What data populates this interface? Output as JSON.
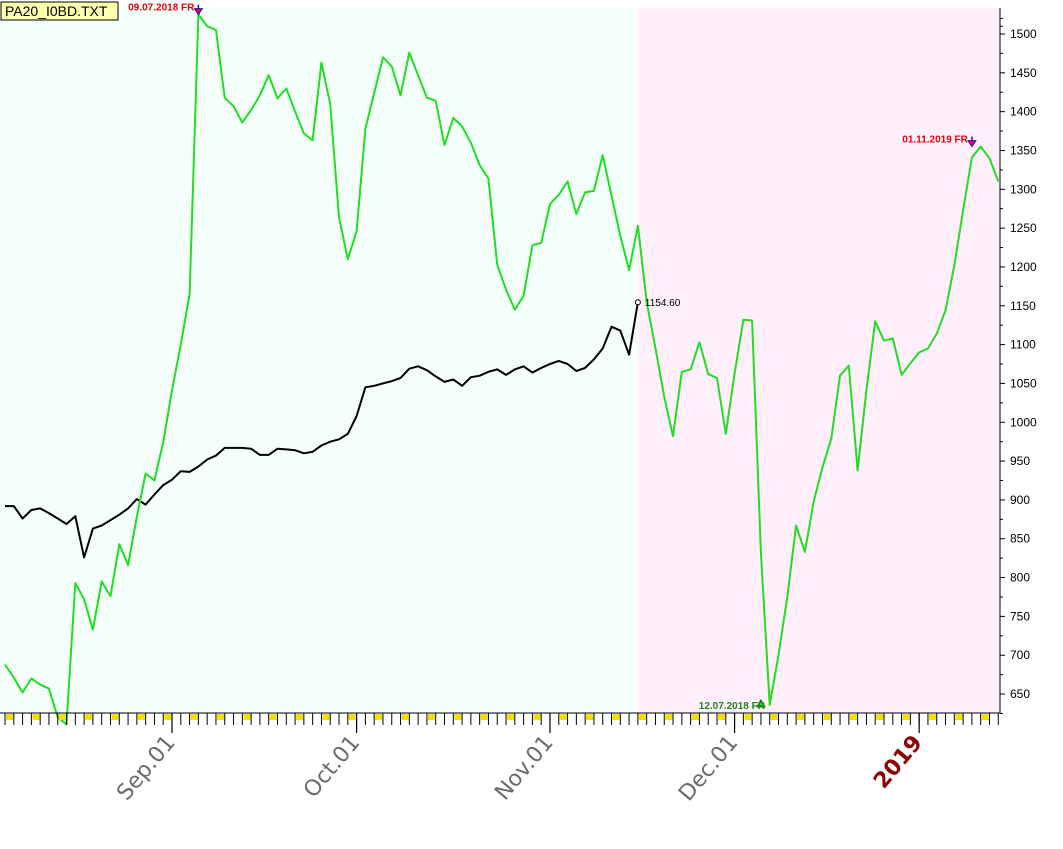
{
  "chart_data": {
    "type": "line",
    "title": "PA20_I0BD.TXT",
    "ylim": [
      625,
      1530
    ],
    "y_ticks": [
      650,
      700,
      750,
      800,
      850,
      900,
      950,
      1000,
      1050,
      1100,
      1150,
      1200,
      1250,
      1300,
      1350,
      1400,
      1450,
      1500
    ],
    "x_labels": [
      {
        "label": "Sep.01",
        "bar": 19,
        "year": false
      },
      {
        "label": "Oct.01",
        "bar": 40,
        "year": false
      },
      {
        "label": "Nov.01",
        "bar": 62,
        "year": false
      },
      {
        "label": "Dec.01",
        "bar": 83,
        "year": false
      },
      {
        "label": "2019",
        "bar": 104,
        "year": true
      }
    ],
    "regions": [
      {
        "from_bar": 0,
        "to_bar": 72,
        "color": "#f4fffc"
      },
      {
        "from_bar": 72,
        "to_bar": 113,
        "color": "#fff0fc"
      }
    ],
    "series": [
      {
        "color": "#000000",
        "x": [
          0,
          1,
          2,
          3,
          4,
          5,
          6,
          7,
          8,
          9,
          10,
          11,
          12,
          13,
          14,
          15,
          16,
          17,
          18,
          19,
          20,
          21,
          22,
          23,
          24,
          25,
          26,
          27,
          28,
          29,
          30,
          31,
          32,
          33,
          34,
          35,
          36,
          37,
          38,
          39,
          40,
          41,
          42,
          43,
          44,
          45,
          46,
          47,
          48,
          49,
          50,
          51,
          52,
          53,
          54,
          55,
          56,
          57,
          58,
          59,
          60,
          61,
          62,
          63,
          64,
          65,
          66,
          67,
          68,
          69,
          70,
          71,
          72
        ],
        "values": [
          892,
          892,
          876,
          887,
          889,
          883,
          876,
          869,
          879,
          826,
          863,
          867,
          874,
          881,
          889,
          901,
          894,
          907,
          919,
          926,
          937,
          936,
          943,
          952,
          957,
          967,
          967,
          967,
          966,
          958,
          958,
          966,
          965,
          964,
          960,
          962,
          970,
          975,
          978,
          985,
          1008,
          1045,
          1047,
          1050,
          1053,
          1057,
          1069,
          1072,
          1067,
          1059,
          1052,
          1055,
          1047,
          1058,
          1060,
          1065,
          1068,
          1061,
          1068,
          1072,
          1064,
          1070,
          1075,
          1079,
          1075,
          1066,
          1070,
          1081,
          1095,
          1123,
          1118,
          1087,
          1154.6
        ]
      },
      {
        "color": "#22dd22",
        "x": [
          0,
          1,
          2,
          3,
          4,
          5,
          6,
          7,
          8,
          9,
          10,
          11,
          12,
          13,
          14,
          15,
          16,
          17,
          18,
          19,
          20,
          21,
          22,
          23,
          24,
          25,
          26,
          27,
          28,
          29,
          30,
          31,
          32,
          33,
          34,
          35,
          36,
          37,
          38,
          39,
          40,
          41,
          42,
          43,
          44,
          45,
          46,
          47,
          48,
          49,
          50,
          51,
          52,
          53,
          54,
          55,
          56,
          57,
          58,
          59,
          60,
          61,
          62,
          63,
          64,
          65,
          66,
          67,
          68,
          69,
          70,
          71,
          72,
          73,
          74,
          75,
          76,
          77,
          78,
          79,
          80,
          81,
          82,
          83,
          84,
          85,
          86,
          87,
          88,
          89,
          90,
          91,
          92,
          93,
          94,
          95,
          96,
          97,
          98,
          99,
          100,
          101,
          102,
          103,
          104,
          105,
          106,
          107,
          108,
          109,
          110,
          111,
          112,
          113
        ],
        "values": [
          688,
          671,
          652,
          670,
          662,
          657,
          620,
          611,
          793,
          772,
          733,
          795,
          776,
          843,
          816,
          878,
          934,
          925,
          974,
          1041,
          1100,
          1165,
          1525,
          1510,
          1505,
          1418,
          1407,
          1386,
          1402,
          1421,
          1447,
          1417,
          1430,
          1400,
          1372,
          1363,
          1463,
          1410,
          1264,
          1210,
          1246,
          1378,
          1424,
          1470,
          1458,
          1421,
          1476,
          1447,
          1418,
          1414,
          1357,
          1392,
          1381,
          1360,
          1331,
          1314,
          1203,
          1171,
          1145,
          1163,
          1228,
          1231,
          1281,
          1293,
          1310,
          1268,
          1296,
          1298,
          1344,
          1292,
          1240,
          1196,
          1253,
          1154.6,
          1095,
          1033,
          982,
          1065,
          1068,
          1103,
          1062,
          1057,
          985,
          1063,
          1132,
          1131,
          832,
          636,
          700,
          775,
          867,
          833,
          898,
          942,
          979,
          1060,
          1073,
          938,
          1041,
          1130,
          1105,
          1108,
          1061,
          1076,
          1090,
          1095,
          1114,
          1144,
          1202,
          1273,
          1341,
          1355,
          1340,
          1310
        ]
      }
    ],
    "annotations": [
      {
        "text": "09.07.2018 FR",
        "bar": 22,
        "value": 1525,
        "color": "#e8000a",
        "kind": "high"
      },
      {
        "text": "01.11.2019 FR",
        "bar": 110,
        "value": 1355,
        "color": "#e8000a",
        "kind": "high"
      },
      {
        "text": "12.07.2018 FR",
        "bar": 86,
        "value": 636,
        "color": "#1a8a1a",
        "kind": "low"
      },
      {
        "text": "1154.60",
        "bar": 72,
        "value": 1154.6,
        "color": "#000000",
        "kind": "point"
      }
    ]
  }
}
